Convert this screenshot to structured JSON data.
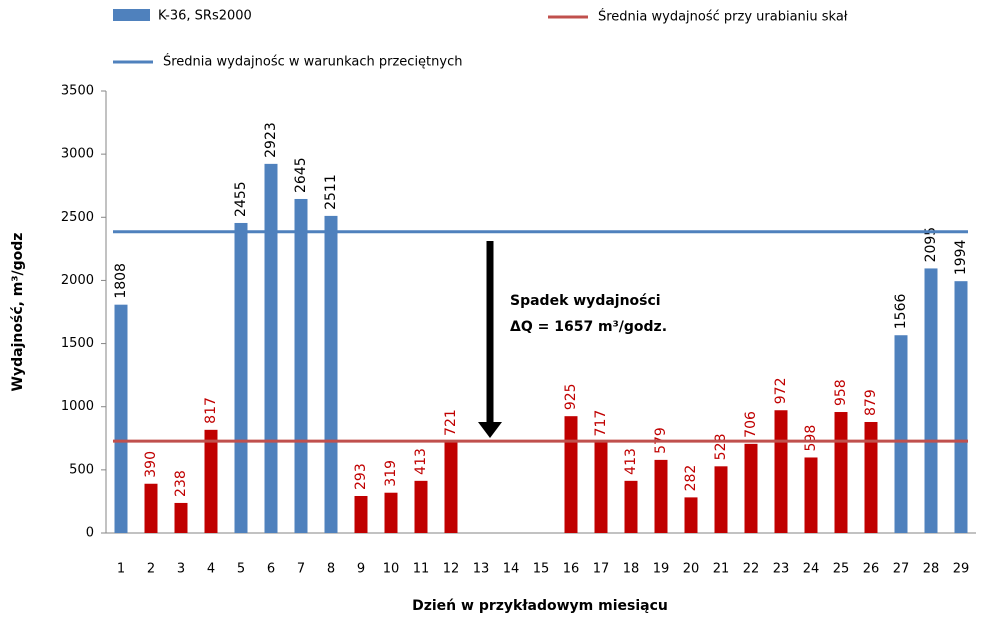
{
  "chart_data": {
    "type": "bar",
    "x_label": "Dzień w przykładowym miesiącu",
    "y_label": "Wydajność, m³/godz",
    "categories": [
      "1",
      "2",
      "3",
      "4",
      "5",
      "6",
      "7",
      "8",
      "9",
      "10",
      "11",
      "12",
      "13",
      "14",
      "15",
      "16",
      "17",
      "18",
      "19",
      "20",
      "21",
      "22",
      "23",
      "24",
      "25",
      "26",
      "27",
      "28",
      "29"
    ],
    "series": [
      {
        "name": "K-36, SRs2000",
        "color": "#4f81bd",
        "values": [
          1808,
          390,
          238,
          817,
          2455,
          2923,
          2645,
          2511,
          293,
          319,
          413,
          721,
          null,
          null,
          null,
          925,
          717,
          413,
          579,
          282,
          528,
          706,
          972,
          598,
          958,
          879,
          1566,
          2095,
          1994
        ],
        "point_colors": [
          "#4f81bd",
          "#c00000",
          "#c00000",
          "#c00000",
          "#4f81bd",
          "#4f81bd",
          "#4f81bd",
          "#4f81bd",
          "#c00000",
          "#c00000",
          "#c00000",
          "#c00000",
          null,
          null,
          null,
          "#c00000",
          "#c00000",
          "#c00000",
          "#c00000",
          "#c00000",
          "#c00000",
          "#c00000",
          "#c00000",
          "#c00000",
          "#c00000",
          "#c00000",
          "#4f81bd",
          "#4f81bd",
          "#4f81bd"
        ]
      }
    ],
    "reference_lines": [
      {
        "name": "Średnia wydajność przy urabianiu skał",
        "color": "#c0504d",
        "value": 728
      },
      {
        "name": "Średnia wydajnośc w warunkach przeciętnych",
        "color": "#4f81bd",
        "value": 2385
      }
    ],
    "annotation": [
      "Spadek wydajności",
      "ΔQ = 1657 m³/godz."
    ],
    "ylim": [
      0,
      3500
    ],
    "yticks": [
      0,
      500,
      1000,
      1500,
      2000,
      2500,
      3000,
      3500
    ],
    "grid": false
  }
}
